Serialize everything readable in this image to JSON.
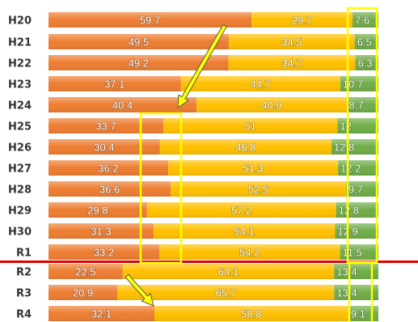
{
  "chart_data": {
    "type": "bar",
    "orientation": "horizontal",
    "stacked": true,
    "normalized": true,
    "categories": [
      "H20",
      "H21",
      "H22",
      "H23",
      "H24",
      "H25",
      "H26",
      "H27",
      "H28",
      "H29",
      "H30",
      "R1",
      "R2",
      "R3",
      "R4"
    ],
    "series": [
      {
        "color": "#ed7d31",
        "values": [
          59.7,
          49.5,
          49.2,
          37.1,
          40.4,
          33.7,
          30.4,
          36.2,
          36.6,
          29.8,
          31.3,
          33.2,
          22.5,
          20.9,
          32.1
        ]
      },
      {
        "color": "#ffc000",
        "values": [
          29.7,
          34.5,
          34.7,
          44.7,
          40.9,
          51,
          46.8,
          51.3,
          52.5,
          57.2,
          54.1,
          54.2,
          64.1,
          65.7,
          58.8
        ]
      },
      {
        "color": "#70ad47",
        "values": [
          7.6,
          6.5,
          6.3,
          10.7,
          8.7,
          12,
          12.8,
          12.2,
          9.7,
          12.8,
          12.9,
          11.5,
          13.4,
          13.4,
          9.1
        ]
      }
    ],
    "data_labels": true,
    "legend": "none",
    "grid": false,
    "annotations": {
      "divider_after_category": "R1",
      "divider_color": "#e00000",
      "highlight_color": "#ffff00",
      "arrow_color": "#ffff00"
    }
  }
}
